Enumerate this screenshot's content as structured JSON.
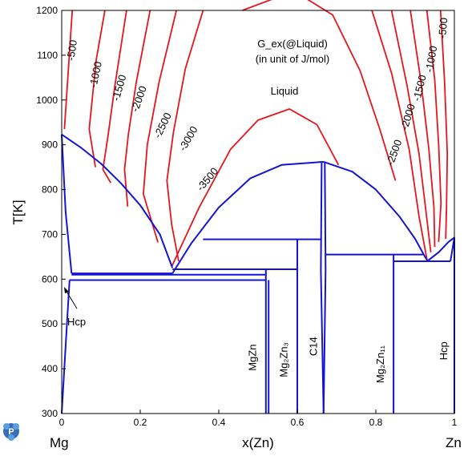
{
  "chart_data": {
    "type": "line",
    "title": "",
    "xlabel": "x(Zn)",
    "ylabel": "T[K]",
    "xlim": [
      0,
      1
    ],
    "ylim": [
      300,
      1200
    ],
    "x_ticks": [
      0,
      0.2,
      0.4,
      0.6,
      0.8,
      1
    ],
    "x_tick_labels": [
      "0",
      "0.2",
      "0.4",
      "0.6",
      "0.8",
      "1"
    ],
    "y_ticks": [
      300,
      400,
      500,
      600,
      700,
      800,
      900,
      1000,
      1100,
      1200
    ],
    "y_tick_labels": [
      "300",
      "400",
      "500",
      "600",
      "700",
      "800",
      "900",
      "1000",
      "1100",
      "1200"
    ],
    "left_end_label": "Mg",
    "right_end_label": "Zn",
    "annotation_title": [
      "G_ex(@Liquid)",
      "(in unit of J/mol)"
    ],
    "liquid_label": "Liquid",
    "colors": {
      "contour": "#e8141c",
      "phase_boundary": "#1414d2",
      "axis": "#000000"
    },
    "contours": [
      {
        "label": "-500",
        "points": [
          [
            0.027,
            1200
          ],
          [
            0.007,
            935
          ]
        ]
      },
      {
        "label": "-1000",
        "points": [
          [
            0.11,
            1200
          ],
          [
            0.088,
            1090
          ],
          [
            0.07,
            935
          ],
          [
            0.086,
            850
          ]
        ]
      },
      {
        "label": "-1500",
        "points": [
          [
            0.165,
            1200
          ],
          [
            0.135,
            1030
          ],
          [
            0.118,
            920
          ],
          [
            0.105,
            845
          ],
          [
            0.125,
            815
          ]
        ]
      },
      {
        "label": "-2000",
        "points": [
          [
            0.225,
            1200
          ],
          [
            0.19,
            1040
          ],
          [
            0.17,
            925
          ],
          [
            0.16,
            845
          ],
          [
            0.168,
            762
          ]
        ]
      },
      {
        "label": "-2500",
        "points": [
          [
            0.292,
            1200
          ],
          [
            0.248,
            1040
          ],
          [
            0.218,
            900
          ],
          [
            0.208,
            790
          ],
          [
            0.245,
            682
          ]
        ]
      },
      {
        "label": "-3000",
        "points": [
          [
            0.36,
            1200
          ],
          [
            0.315,
            1070
          ],
          [
            0.285,
            930
          ],
          [
            0.268,
            820
          ],
          [
            0.28,
            722
          ],
          [
            0.298,
            640
          ]
        ]
      },
      {
        "label": "-3500",
        "points": [
          [
            0.28,
            628
          ],
          [
            0.35,
            760
          ],
          [
            0.43,
            890
          ],
          [
            0.5,
            955
          ],
          [
            0.58,
            980
          ],
          [
            0.65,
            945
          ],
          [
            0.705,
            855
          ]
        ]
      },
      {
        "label": "-3500",
        "points": [
          [
            0.46,
            1200
          ],
          [
            0.545,
            1228
          ],
          [
            0.625,
            1225
          ],
          [
            0.69,
            1190
          ],
          [
            0.76,
            1065
          ],
          [
            0.81,
            935
          ],
          [
            0.85,
            820
          ]
        ]
      },
      {
        "label": "-2500",
        "points": [
          [
            0.79,
            1200
          ],
          [
            0.84,
            1060
          ],
          [
            0.885,
            890
          ],
          [
            0.91,
            740
          ],
          [
            0.93,
            645
          ]
        ]
      },
      {
        "label": "-2000",
        "points": [
          [
            0.84,
            1200
          ],
          [
            0.88,
            1030
          ],
          [
            0.91,
            880
          ],
          [
            0.925,
            770
          ],
          [
            0.94,
            660
          ]
        ]
      },
      {
        "label": "-1500",
        "points": [
          [
            0.888,
            1200
          ],
          [
            0.915,
            1040
          ],
          [
            0.935,
            890
          ],
          [
            0.948,
            760
          ],
          [
            0.95,
            672
          ]
        ]
      },
      {
        "label": "-1000",
        "points": [
          [
            0.93,
            1200
          ],
          [
            0.95,
            1045
          ],
          [
            0.96,
            900
          ],
          [
            0.966,
            770
          ],
          [
            0.96,
            683
          ]
        ]
      },
      {
        "label": "-500",
        "points": [
          [
            0.965,
            1200
          ],
          [
            0.975,
            1040
          ],
          [
            0.982,
            880
          ],
          [
            0.98,
            760
          ],
          [
            0.978,
            690
          ]
        ]
      }
    ],
    "contour_labels": [
      {
        "text": "-500",
        "x": 0.035,
        "y": 1110,
        "angle": -82
      },
      {
        "text": "-1000",
        "x": 0.095,
        "y": 1055,
        "angle": -78
      },
      {
        "text": "-1500",
        "x": 0.155,
        "y": 1025,
        "angle": -74
      },
      {
        "text": "-2000",
        "x": 0.205,
        "y": 1000,
        "angle": -70
      },
      {
        "text": "-2500",
        "x": 0.265,
        "y": 940,
        "angle": -64
      },
      {
        "text": "-3000",
        "x": 0.33,
        "y": 910,
        "angle": -60
      },
      {
        "text": "-3500",
        "x": 0.378,
        "y": 818,
        "angle": -50
      },
      {
        "text": "-2500",
        "x": 0.855,
        "y": 880,
        "angle": -70
      },
      {
        "text": "-2000",
        "x": 0.89,
        "y": 960,
        "angle": -73
      },
      {
        "text": "-1500",
        "x": 0.92,
        "y": 1025,
        "angle": -76
      },
      {
        "text": "-1000",
        "x": 0.95,
        "y": 1090,
        "angle": -80
      },
      {
        "text": "-500",
        "x": 0.98,
        "y": 1160,
        "angle": -85
      }
    ],
    "phase_boundaries": [
      {
        "name": "liquidus-left",
        "points": [
          [
            0,
            923
          ],
          [
            0.05,
            893
          ],
          [
            0.1,
            858
          ],
          [
            0.15,
            815
          ],
          [
            0.2,
            765
          ],
          [
            0.25,
            700
          ],
          [
            0.282,
            625
          ]
        ]
      },
      {
        "name": "liquidus-dome",
        "points": [
          [
            0.282,
            613
          ],
          [
            0.33,
            680
          ],
          [
            0.4,
            760
          ],
          [
            0.48,
            825
          ],
          [
            0.56,
            855
          ],
          [
            0.667,
            862
          ]
        ]
      },
      {
        "name": "liquidus-right",
        "points": [
          [
            0.667,
            862
          ],
          [
            0.74,
            840
          ],
          [
            0.8,
            800
          ],
          [
            0.86,
            740
          ],
          [
            0.9,
            690
          ],
          [
            0.925,
            650
          ],
          [
            0.932,
            641
          ]
        ]
      },
      {
        "name": "liquidus-zn",
        "points": [
          [
            0.932,
            641
          ],
          [
            0.96,
            660
          ],
          [
            0.985,
            683
          ],
          [
            1,
            693
          ]
        ]
      },
      {
        "name": "solidus-hcp-left",
        "points": [
          [
            0,
            923
          ],
          [
            0.01,
            750
          ],
          [
            0.025,
            613
          ]
        ]
      },
      {
        "name": "solvus-hcp-left",
        "points": [
          [
            0,
            300
          ],
          [
            0.008,
            420
          ],
          [
            0.02,
            598
          ]
        ]
      },
      {
        "name": "eutectic-line-1",
        "points": [
          [
            0.025,
            613
          ],
          [
            0.282,
            613
          ]
        ]
      },
      {
        "name": "peritectic-mgzn",
        "points": [
          [
            0.282,
            622
          ],
          [
            0.6,
            622
          ]
        ]
      },
      {
        "name": "mgzn-line",
        "points": [
          [
            0.02,
            598
          ],
          [
            0.52,
            598
          ]
        ]
      },
      {
        "name": "mgzn-inner",
        "points": [
          [
            0.025,
            610
          ],
          [
            0.52,
            610
          ]
        ]
      },
      {
        "name": "mgzn-vertical",
        "points": [
          [
            0.52,
            300
          ],
          [
            0.52,
            622
          ]
        ]
      },
      {
        "name": "mgzn-vertical-2",
        "points": [
          [
            0.527,
            300
          ],
          [
            0.527,
            598
          ]
        ]
      },
      {
        "name": "mg2zn3-top",
        "points": [
          [
            0.36,
            689
          ],
          [
            0.66,
            689
          ]
        ]
      },
      {
        "name": "mg2zn3-vertical",
        "points": [
          [
            0.6,
            300
          ],
          [
            0.6,
            689
          ]
        ]
      },
      {
        "name": "c14-left",
        "points": [
          [
            0.667,
            300
          ],
          [
            0.66,
            620
          ],
          [
            0.662,
            862
          ]
        ]
      },
      {
        "name": "c14-right",
        "points": [
          [
            0.667,
            300
          ],
          [
            0.672,
            620
          ],
          [
            0.67,
            862
          ]
        ]
      },
      {
        "name": "mg2zn11-top",
        "points": [
          [
            0.672,
            655
          ],
          [
            0.92,
            655
          ]
        ]
      },
      {
        "name": "mg2zn11-vertical",
        "points": [
          [
            0.845,
            300
          ],
          [
            0.845,
            655
          ]
        ]
      },
      {
        "name": "eutectic-line-zn",
        "points": [
          [
            0.845,
            640
          ],
          [
            0.99,
            640
          ]
        ]
      },
      {
        "name": "hcp-zn-solvus",
        "points": [
          [
            0.99,
            640
          ],
          [
            1,
            693
          ]
        ]
      },
      {
        "name": "right-axis-line",
        "points": [
          [
            1,
            300
          ],
          [
            1,
            693
          ]
        ]
      }
    ],
    "phase_labels": [
      {
        "text": "MgZn",
        "x": 0.495,
        "y": 425
      },
      {
        "text": "Mg₂Zn₃",
        "x": 0.575,
        "y": 420
      },
      {
        "text": "C14",
        "x": 0.65,
        "y": 450
      },
      {
        "text": "Mg₂Zn₁₁",
        "x": 0.82,
        "y": 410
      },
      {
        "text": "Hcp",
        "x": 0.982,
        "y": 440
      }
    ],
    "hcp_left_label": "Hcp"
  }
}
